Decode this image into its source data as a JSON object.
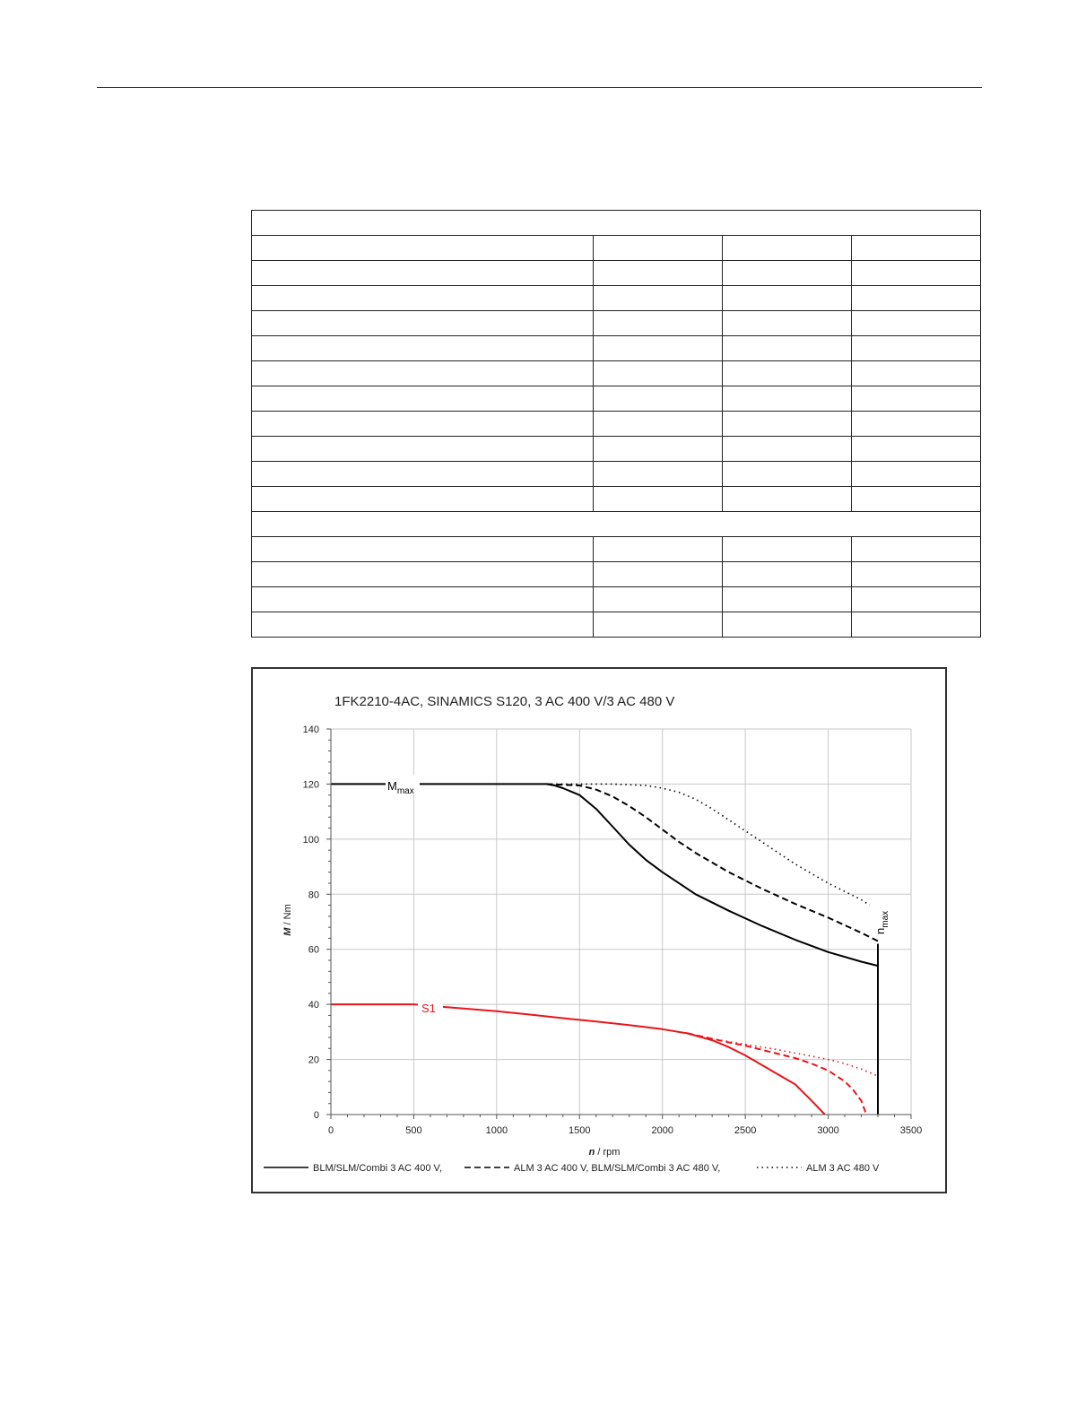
{
  "chart_data": {
    "type": "line",
    "title": "1FK2210-4AC,  SINAMICS S120,  3 AC 400 V/3 AC 480 V",
    "xlabel_italic": "n",
    "xlabel_unit": " / rpm",
    "ylabel_italic": "M",
    "ylabel_unit": " / Nm",
    "xlim": [
      0,
      3500
    ],
    "ylim": [
      0,
      140
    ],
    "xticks": [
      0,
      500,
      1000,
      1500,
      2000,
      2500,
      3000,
      3500
    ],
    "yticks": [
      0,
      20,
      40,
      60,
      80,
      100,
      120,
      140
    ],
    "grid": true,
    "colors": {
      "mmax": "#000000",
      "s1": "#e8151b",
      "grid": "#c8c8c8"
    },
    "annotations": {
      "mmax_main": "M",
      "mmax_sub": "max",
      "s1": "S1",
      "nmax_main": "n",
      "nmax_sub": "max"
    },
    "legend": {
      "placement": "bottom",
      "entries": [
        {
          "style": "solid",
          "label": "BLM/SLM/Combi 3 AC 400 V,"
        },
        {
          "style": "dashed",
          "label": "ALM 3 AC 400 V, BLM/SLM/Combi 3 AC 480 V,"
        },
        {
          "style": "dotted",
          "label": "ALM 3 AC 480 V"
        }
      ]
    },
    "series": [
      {
        "group": "mmax",
        "style": "solid",
        "x": [
          0,
          1300,
          1350,
          1400,
          1500,
          1600,
          1700,
          1800,
          1900,
          2000,
          2200,
          2400,
          2600,
          2800,
          3000,
          3200,
          3300
        ],
        "y": [
          120,
          120,
          119.5,
          118.5,
          116,
          111,
          104.5,
          98,
          92.5,
          88,
          80,
          74,
          68.5,
          63.5,
          59,
          55.5,
          54
        ]
      },
      {
        "group": "mmax",
        "style": "dashed",
        "x": [
          1300,
          1500,
          1600,
          1700,
          1800,
          1900,
          2000,
          2100,
          2200,
          2400,
          2600,
          2800,
          3000,
          3200,
          3300
        ],
        "y": [
          120,
          119.5,
          118,
          115.5,
          112,
          108,
          103.5,
          99,
          95,
          88,
          82,
          76.5,
          71.5,
          66,
          63
        ]
      },
      {
        "group": "mmax",
        "style": "dotted",
        "x": [
          1300,
          1500,
          1700,
          1900,
          2000,
          2100,
          2200,
          2300,
          2400,
          2500,
          2600,
          2700,
          2800,
          2900,
          3000,
          3100,
          3200,
          3250
        ],
        "y": [
          120,
          120,
          120,
          119.5,
          118.5,
          117,
          114.5,
          111,
          107,
          103,
          99,
          95,
          91,
          87.5,
          84,
          81,
          78,
          76
        ]
      },
      {
        "group": "nmax",
        "style": "solid",
        "x": [
          3300,
          3300
        ],
        "y": [
          0,
          62
        ]
      },
      {
        "group": "s1",
        "style": "solid",
        "x": [
          0,
          500,
          600,
          1000,
          1200,
          1400,
          1600,
          1800,
          2000,
          2150,
          2300,
          2400,
          2500,
          2600,
          2700,
          2800,
          2900,
          2980
        ],
        "y": [
          40,
          40,
          39.5,
          37.5,
          36.3,
          35,
          33.8,
          32.5,
          31,
          29.5,
          27,
          24.5,
          21.5,
          18,
          14.5,
          11,
          5,
          0
        ]
      },
      {
        "group": "s1",
        "style": "dashed",
        "x": [
          2150,
          2300,
          2400,
          2500,
          2600,
          2700,
          2800,
          2900,
          3000,
          3100,
          3150,
          3200,
          3230
        ],
        "y": [
          29.5,
          27.5,
          26.2,
          25,
          23.5,
          22,
          20.5,
          18.5,
          16,
          12,
          9,
          5,
          0
        ]
      },
      {
        "group": "s1",
        "style": "dotted",
        "x": [
          2150,
          2300,
          2400,
          2500,
          2600,
          2700,
          2800,
          2900,
          3000,
          3100,
          3200,
          3300
        ],
        "y": [
          29.5,
          27.5,
          26.5,
          25.5,
          24.5,
          23.5,
          22.3,
          21.2,
          20,
          18.5,
          16.5,
          14
        ]
      }
    ]
  }
}
